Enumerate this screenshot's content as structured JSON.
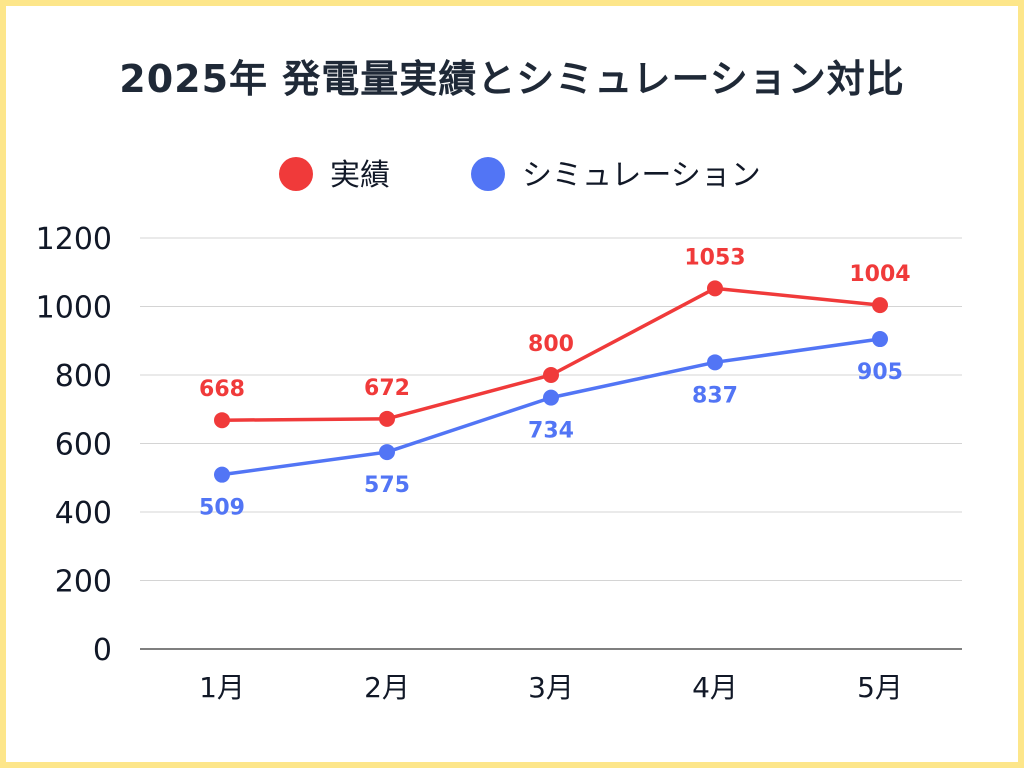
{
  "title": "2025年 発電量実績とシミュレーション対比",
  "chart_data": {
    "type": "line",
    "title": "2025年 発電量実績とシミュレーション対比",
    "categories": [
      "1月",
      "2月",
      "3月",
      "4月",
      "5月"
    ],
    "series": [
      {
        "name": "実績",
        "color": "#f03a3a",
        "values": [
          668,
          672,
          800,
          1053,
          1004
        ]
      },
      {
        "name": "シミュレーション",
        "color": "#5275f5",
        "values": [
          509,
          575,
          734,
          837,
          905
        ]
      }
    ],
    "ylim": [
      0,
      1200
    ],
    "yticks": [
      0,
      200,
      400,
      600,
      800,
      1000,
      1200
    ],
    "grid": true,
    "legend_position": "top-center",
    "xlabel": "",
    "ylabel": ""
  }
}
